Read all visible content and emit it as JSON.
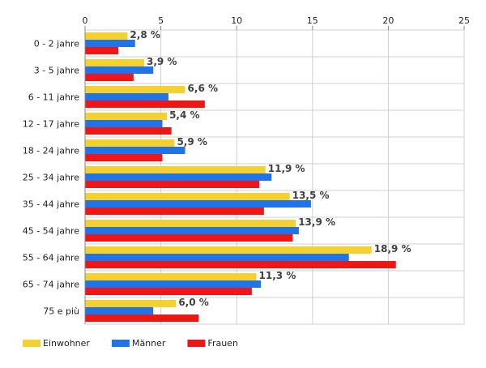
{
  "chart_data": {
    "type": "bar",
    "orientation": "horizontal",
    "categories": [
      "0 - 2 jahre",
      "3 - 5 jahre",
      "6 - 11 jahre",
      "12 - 17 jahre",
      "18 - 24 jahre",
      "25 - 34 jahre",
      "35 - 44 jahre",
      "45 - 54 jahre",
      "55 - 64 jahre",
      "65 - 74 jahre",
      "75 e più"
    ],
    "series": [
      {
        "name": "Einwohner",
        "color": "#f5d130",
        "values": [
          2.8,
          3.9,
          6.6,
          5.4,
          5.9,
          11.9,
          13.5,
          13.9,
          18.9,
          11.3,
          6.0
        ]
      },
      {
        "name": "Männer",
        "color": "#1e74e8",
        "values": [
          3.3,
          4.5,
          5.5,
          5.1,
          6.6,
          12.3,
          14.9,
          14.1,
          17.4,
          11.6,
          4.5
        ]
      },
      {
        "name": "Frauen",
        "color": "#f01616",
        "values": [
          2.2,
          3.2,
          7.9,
          5.7,
          5.1,
          11.5,
          11.8,
          13.7,
          20.5,
          11.0,
          7.5
        ]
      }
    ],
    "data_labels": [
      "2,8 %",
      "3,9 %",
      "6,6 %",
      "5,4 %",
      "5,9 %",
      "11,9 %",
      "13,5 %",
      "13,9 %",
      "18,9 %",
      "11,3 %",
      "6,0 %"
    ],
    "x_ticks": [
      "0",
      "5",
      "10",
      "15",
      "20",
      "25"
    ],
    "xlim": [
      0,
      25
    ],
    "grid": true,
    "legend_position": "bottom-left",
    "title": "",
    "xlabel": "",
    "ylabel": ""
  }
}
